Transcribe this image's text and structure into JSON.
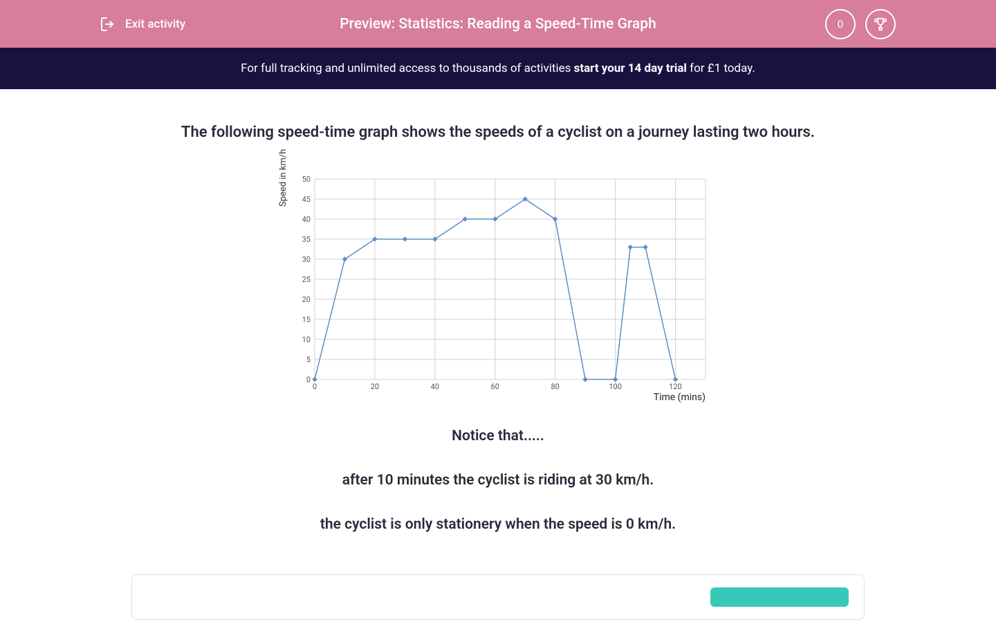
{
  "header": {
    "exit_label": "Exit activity",
    "title": "Preview: Statistics: Reading a Speed-Time Graph",
    "score": "0"
  },
  "trial_banner": {
    "prefix": "For full tracking and unlimited access to thousands of activities ",
    "bold": "start your 14 day trial",
    "suffix": " for £1 today."
  },
  "content": {
    "intro": "The following speed-time graph shows the speeds of a cyclist on a journey lasting two hours.",
    "notice": "Notice that.....",
    "line1": "after 10 minutes the cyclist is riding at 30 km/h.",
    "line2": "the cyclist is only stationery when the speed is 0 km/h."
  },
  "chart": {
    "type": "line",
    "y_axis_label": "Speed in km/h",
    "x_axis_label": "Time (mins)",
    "x_ticks": [
      0,
      20,
      40,
      60,
      80,
      100,
      120
    ],
    "y_ticks": [
      0,
      5,
      10,
      15,
      20,
      25,
      30,
      35,
      40,
      45,
      50
    ],
    "x_min": 0,
    "x_max": 130,
    "y_min": 0,
    "y_max": 50,
    "data_x": [
      0,
      10,
      20,
      30,
      40,
      50,
      60,
      70,
      80,
      90,
      100,
      105,
      110,
      120
    ],
    "data_y": [
      0,
      30,
      35,
      35,
      35,
      40,
      40,
      45,
      40,
      0,
      0,
      33,
      33,
      0
    ],
    "line_color": "#5b8fc7",
    "marker_color": "#5b8fc7",
    "marker_size": 3,
    "line_width": 1.5,
    "grid_color": "#d0d0d0",
    "background_color": "#ffffff",
    "axis_font_size": 11,
    "label_font_size": 13
  },
  "colors": {
    "header_bg": "#d67e9a",
    "banner_bg": "#1a1140",
    "cta_bg": "#36c9b8",
    "text_primary": "#2a2a3a"
  }
}
